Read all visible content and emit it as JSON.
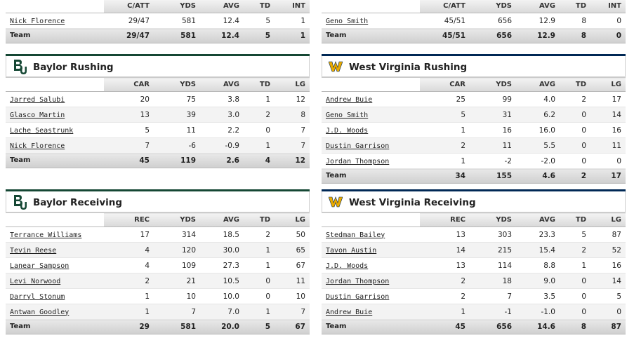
{
  "colors": {
    "baylor_green": "#154734",
    "baylor_gold": "#f0b400",
    "wvu_gold": "#eaaa00",
    "wvu_navy": "#002855"
  },
  "baylor_passing": {
    "columns": [
      "C/ATT",
      "YDS",
      "AVG",
      "TD",
      "INT"
    ],
    "rows": [
      {
        "name": "Nick Florence",
        "stats": [
          "29/47",
          "581",
          "12.4",
          "5",
          "1"
        ]
      }
    ],
    "team": {
      "label": "Team",
      "stats": [
        "29/47",
        "581",
        "12.4",
        "5",
        "1"
      ]
    }
  },
  "wvu_passing": {
    "columns": [
      "C/ATT",
      "YDS",
      "AVG",
      "TD",
      "INT"
    ],
    "rows": [
      {
        "name": "Geno Smith",
        "stats": [
          "45/51",
          "656",
          "12.9",
          "8",
          "0"
        ]
      }
    ],
    "team": {
      "label": "Team",
      "stats": [
        "45/51",
        "656",
        "12.9",
        "8",
        "0"
      ]
    }
  },
  "baylor_rushing": {
    "title": "Baylor Rushing",
    "logo_icon": "baylor-bu-logo",
    "columns": [
      "CAR",
      "YDS",
      "AVG",
      "TD",
      "LG"
    ],
    "rows": [
      {
        "name": "Jarred Salubi",
        "stats": [
          "20",
          "75",
          "3.8",
          "1",
          "12"
        ]
      },
      {
        "name": "Glasco Martin",
        "stats": [
          "13",
          "39",
          "3.0",
          "2",
          "8"
        ]
      },
      {
        "name": "Lache Seastrunk",
        "stats": [
          "5",
          "11",
          "2.2",
          "0",
          "7"
        ]
      },
      {
        "name": "Nick Florence",
        "stats": [
          "7",
          "-6",
          "-0.9",
          "1",
          "7"
        ]
      }
    ],
    "team": {
      "label": "Team",
      "stats": [
        "45",
        "119",
        "2.6",
        "4",
        "12"
      ]
    }
  },
  "wvu_rushing": {
    "title": "West Virginia Rushing",
    "logo_icon": "wvu-flying-wv-logo",
    "columns": [
      "CAR",
      "YDS",
      "AVG",
      "TD",
      "LG"
    ],
    "rows": [
      {
        "name": "Andrew Buie",
        "stats": [
          "25",
          "99",
          "4.0",
          "2",
          "17"
        ]
      },
      {
        "name": "Geno Smith",
        "stats": [
          "5",
          "31",
          "6.2",
          "0",
          "14"
        ]
      },
      {
        "name": "J.D. Woods",
        "stats": [
          "1",
          "16",
          "16.0",
          "0",
          "16"
        ]
      },
      {
        "name": "Dustin Garrison",
        "stats": [
          "2",
          "11",
          "5.5",
          "0",
          "11"
        ]
      },
      {
        "name": "Jordan Thompson",
        "stats": [
          "1",
          "-2",
          "-2.0",
          "0",
          "0"
        ]
      }
    ],
    "team": {
      "label": "Team",
      "stats": [
        "34",
        "155",
        "4.6",
        "2",
        "17"
      ]
    }
  },
  "baylor_receiving": {
    "title": "Baylor Receiving",
    "logo_icon": "baylor-bu-logo",
    "columns": [
      "REC",
      "YDS",
      "AVG",
      "TD",
      "LG"
    ],
    "rows": [
      {
        "name": "Terrance Williams",
        "stats": [
          "17",
          "314",
          "18.5",
          "2",
          "50"
        ]
      },
      {
        "name": "Tevin Reese",
        "stats": [
          "4",
          "120",
          "30.0",
          "1",
          "65"
        ]
      },
      {
        "name": "Lanear Sampson",
        "stats": [
          "4",
          "109",
          "27.3",
          "1",
          "67"
        ]
      },
      {
        "name": "Levi Norwood",
        "stats": [
          "2",
          "21",
          "10.5",
          "0",
          "11"
        ]
      },
      {
        "name": "Darryl Stonum",
        "stats": [
          "1",
          "10",
          "10.0",
          "0",
          "10"
        ]
      },
      {
        "name": "Antwan Goodley",
        "stats": [
          "1",
          "7",
          "7.0",
          "1",
          "7"
        ]
      }
    ],
    "team": {
      "label": "Team",
      "stats": [
        "29",
        "581",
        "20.0",
        "5",
        "67"
      ]
    }
  },
  "wvu_receiving": {
    "title": "West Virginia Receiving",
    "logo_icon": "wvu-flying-wv-logo",
    "columns": [
      "REC",
      "YDS",
      "AVG",
      "TD",
      "LG"
    ],
    "rows": [
      {
        "name": "Stedman Bailey",
        "stats": [
          "13",
          "303",
          "23.3",
          "5",
          "87"
        ]
      },
      {
        "name": "Tavon Austin",
        "stats": [
          "14",
          "215",
          "15.4",
          "2",
          "52"
        ]
      },
      {
        "name": "J.D. Woods",
        "stats": [
          "13",
          "114",
          "8.8",
          "1",
          "16"
        ]
      },
      {
        "name": "Jordan Thompson",
        "stats": [
          "2",
          "18",
          "9.0",
          "0",
          "14"
        ]
      },
      {
        "name": "Dustin Garrison",
        "stats": [
          "2",
          "7",
          "3.5",
          "0",
          "5"
        ]
      },
      {
        "name": "Andrew Buie",
        "stats": [
          "1",
          "-1",
          "-1.0",
          "0",
          "0"
        ]
      }
    ],
    "team": {
      "label": "Team",
      "stats": [
        "45",
        "656",
        "14.6",
        "8",
        "87"
      ]
    }
  }
}
